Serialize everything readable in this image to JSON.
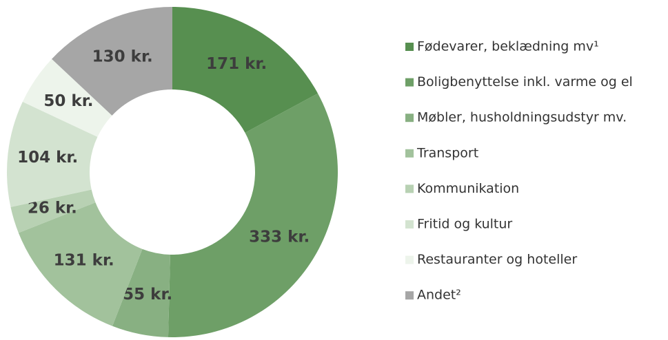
{
  "chart_data": {
    "type": "donut",
    "categories": [
      "Fødevarer, beklædning mv¹",
      "Boligbenyttelse inkl. varme og el",
      "Møbler, husholdningsudstyr mv.",
      "Transport",
      "Kommunikation",
      "Fritid og kultur",
      "Restauranter og hoteller",
      "Andet²"
    ],
    "values": [
      171,
      333,
      55,
      131,
      26,
      104,
      50,
      130
    ],
    "value_labels": [
      "171 kr.",
      "333 kr.",
      "55 kr.",
      "131 kr.",
      "26 kr.",
      "104 kr.",
      "50 kr.",
      "130 kr."
    ],
    "colors": [
      "#578f50",
      "#6e9f67",
      "#88b082",
      "#a2c29c",
      "#b8d1b3",
      "#d3e3d0",
      "#edf4eb",
      "#a6a6a6"
    ],
    "legend": "right"
  }
}
